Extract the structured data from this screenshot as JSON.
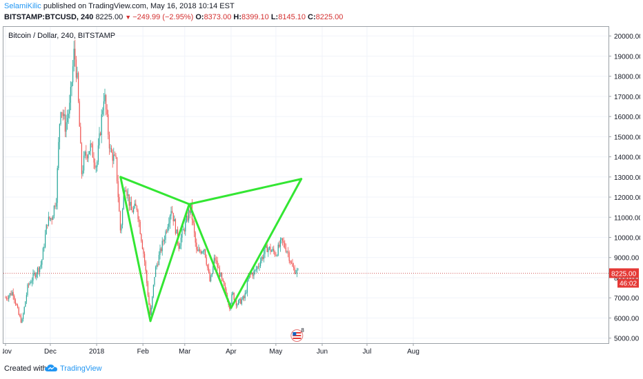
{
  "header": {
    "user": "SelamiKilic",
    "published_text": "published on TradingView.com, May 16, 2018 10:14 EST",
    "symbol_interval": "BITSTAMP:BTCUSD, 240",
    "last": "8225.00",
    "change": "−249.99 (−2.95%)",
    "o_label": "O:",
    "o_value": "8373.00",
    "h_label": "H:",
    "h_value": "8399.10",
    "l_label": "L:",
    "l_value": "8145.10",
    "c_label": "C:",
    "c_value": "8225.00"
  },
  "colors": {
    "up": "#26a69a",
    "down": "#ef5350",
    "pattern": "#33e633",
    "price_line": "#c62828",
    "badge": "#e53935",
    "link": "#2196f3"
  },
  "footer": {
    "created_with": "Created with",
    "brand": "TradingView"
  },
  "chart_data": {
    "type": "candlestick",
    "title": "Bitcoin / Dollar, 240, BITSTAMP",
    "x_tick_labels": [
      "Nov",
      "Dec",
      "2018",
      "Feb",
      "Mar",
      "Apr",
      "May",
      "Jun",
      "Jul",
      "Aug"
    ],
    "y_ticks": [
      20000,
      19000,
      18000,
      17000,
      16000,
      15000,
      14000,
      13000,
      12000,
      11000,
      10000,
      9000,
      8000,
      7000,
      6000,
      5000
    ],
    "ylim": [
      4750,
      20450
    ],
    "last_price": 8225,
    "last_price_label": "8225.00",
    "countdown_label": "46:02",
    "event_marker": {
      "date": "May 16, 2018",
      "count": "8",
      "icon": "us-flag-icon"
    },
    "price_path": [
      [
        "Nov",
        7000
      ],
      [
        "Nov 6",
        7300
      ],
      [
        "Nov 10",
        6100
      ],
      [
        "Nov 12",
        5800
      ],
      [
        "Nov 16",
        7600
      ],
      [
        "Nov 20",
        8100
      ],
      [
        "Nov 25",
        8700
      ],
      [
        "Nov 29",
        10800
      ],
      [
        "Dec 2",
        11000
      ],
      [
        "Dec 5",
        12000
      ],
      [
        "Dec 7",
        15500
      ],
      [
        "Dec 8",
        16600
      ],
      [
        "Dec 11",
        15500
      ],
      [
        "Dec 14",
        16500
      ],
      [
        "Dec 17",
        19300
      ],
      [
        "Dec 19",
        17800
      ],
      [
        "Dec 22",
        13200
      ],
      [
        "Dec 24",
        14000
      ],
      [
        "Dec 28",
        14500
      ],
      [
        "Jan 1",
        13500
      ],
      [
        "Jan 6",
        17200
      ],
      [
        "Jan 10",
        14300
      ],
      [
        "Jan 14",
        13700
      ],
      [
        "Jan 17",
        10200
      ],
      [
        "Jan 20",
        12800
      ],
      [
        "Jan 24",
        11300
      ],
      [
        "Jan 28",
        11500
      ],
      [
        "Feb 2",
        8900
      ],
      [
        "Feb 6",
        6000
      ],
      [
        "Feb 9",
        8300
      ],
      [
        "Feb 16",
        10200
      ],
      [
        "Feb 20",
        11500
      ],
      [
        "Feb 25",
        9600
      ],
      [
        "Mar 5",
        11500
      ],
      [
        "Mar 9",
        9200
      ],
      [
        "Mar 14",
        9500
      ],
      [
        "Mar 18",
        7700
      ],
      [
        "Mar 21",
        9000
      ],
      [
        "Mar 24",
        8300
      ],
      [
        "Mar 31",
        6600
      ],
      [
        "Apr 2",
        7200
      ],
      [
        "Apr 5",
        6700
      ],
      [
        "Apr 10",
        7000
      ],
      [
        "Apr 13",
        8100
      ],
      [
        "Apr 17",
        8300
      ],
      [
        "Apr 21",
        8900
      ],
      [
        "Apr 25",
        9500
      ],
      [
        "May 1",
        9200
      ],
      [
        "May 5",
        9800
      ],
      [
        "May 9",
        9300
      ],
      [
        "May 12",
        8500
      ],
      [
        "May 16",
        8225
      ]
    ],
    "pattern_lines": [
      {
        "from": [
          "Jan 17",
          13000
        ],
        "to": [
          "Feb 6",
          5850
        ]
      },
      {
        "from": [
          "Feb 6",
          5850
        ],
        "to": [
          "Mar 4",
          11650
        ]
      },
      {
        "from": [
          "Jan 17",
          13000
        ],
        "to": [
          "Mar 4",
          11650
        ]
      },
      {
        "from": [
          "Mar 4",
          11650
        ],
        "to": [
          "Apr 1",
          6500
        ]
      },
      {
        "from": [
          "Apr 1",
          6500
        ],
        "to": [
          "May 18",
          12900
        ]
      },
      {
        "from": [
          "Mar 4",
          11650
        ],
        "to": [
          "May 18",
          12900
        ]
      }
    ]
  }
}
